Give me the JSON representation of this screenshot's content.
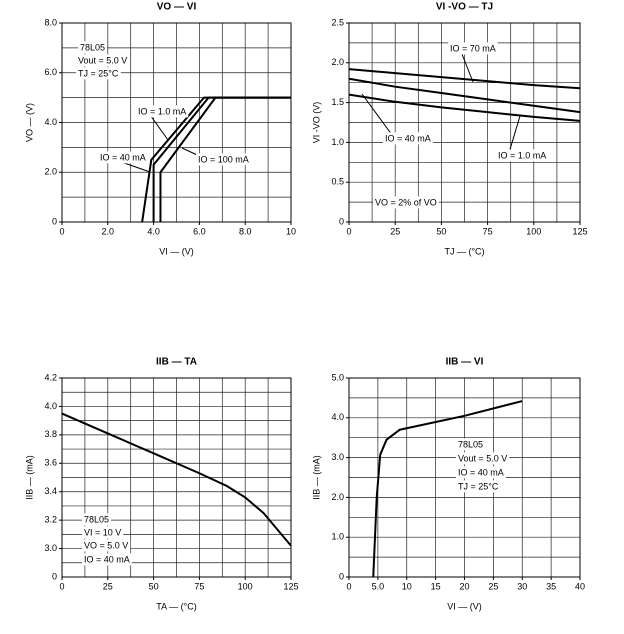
{
  "chart_data": [
    {
      "type": "line",
      "title": "VO — VI",
      "x_label": "VI — (V)",
      "y_label": "VO — (V)",
      "xlim": [
        0,
        10
      ],
      "ylim": [
        0,
        8
      ],
      "xticks": [
        0,
        {
          "value": 2,
          "label": "2.0"
        },
        {
          "value": 4,
          "label": "4.0"
        },
        {
          "value": 6,
          "label": "6.0"
        },
        {
          "value": 8,
          "label": "8.0"
        },
        10
      ],
      "yticks": [
        0,
        {
          "value": 2,
          "label": "2.0"
        },
        {
          "value": 4,
          "label": "4.0"
        },
        {
          "value": 6,
          "label": "6.0"
        },
        {
          "value": 8,
          "label": "8.0"
        }
      ],
      "xgrid": [
        1,
        2,
        3,
        4,
        5,
        6,
        7,
        8,
        9
      ],
      "ygrid": [
        1,
        2,
        3,
        4,
        5,
        6,
        7
      ],
      "grid": true,
      "annotations": [
        "78L05",
        "Vout = 5.0 V",
        "TJ = 25°C"
      ],
      "series": [
        {
          "name": "IO = 1.0 mA",
          "color": "#000000",
          "x": [
            3.5,
            3.9,
            6.2,
            10
          ],
          "values": [
            0,
            2.5,
            5.0,
            5.0
          ]
        },
        {
          "name": "IO = 40 mA",
          "color": "#000000",
          "x": [
            4.0,
            4.0,
            6.4,
            10
          ],
          "values": [
            0,
            2.3,
            5.0,
            5.0
          ]
        },
        {
          "name": "IO = 100 mA",
          "color": "#000000",
          "x": [
            4.3,
            4.3,
            6.7,
            10
          ],
          "values": [
            0,
            2.0,
            5.0,
            5.0
          ]
        }
      ]
    },
    {
      "type": "line",
      "title": "VI -VO — TJ",
      "x_label": "TJ — (°C)",
      "y_label": "VI -VO (V)",
      "xlim": [
        0,
        125
      ],
      "ylim": [
        0,
        2.5
      ],
      "xticks": [
        0,
        25,
        50,
        75,
        100,
        125
      ],
      "yticks": [
        0,
        0.5,
        {
          "value": 1,
          "label": "1.0"
        },
        1.5,
        {
          "value": 2,
          "label": "2.0"
        },
        2.5
      ],
      "xgrid": [
        12.5,
        25,
        37.5,
        50,
        62.5,
        75,
        87.5,
        100,
        112.5
      ],
      "ygrid": [
        0.25,
        0.5,
        0.75,
        1,
        1.25,
        1.5,
        1.75,
        2,
        2.25
      ],
      "grid": true,
      "annotations": [
        "VO = 2% of VO"
      ],
      "x": [
        0,
        25,
        50,
        75,
        100,
        125
      ],
      "series": [
        {
          "name": "IO = 70 mA",
          "color": "#000000",
          "values": [
            1.92,
            1.87,
            1.82,
            1.77,
            1.72,
            1.68
          ]
        },
        {
          "name": "IO = 40 mA",
          "color": "#000000",
          "values": [
            1.8,
            1.7,
            1.62,
            1.54,
            1.46,
            1.38
          ]
        },
        {
          "name": "IO = 1.0 mA",
          "color": "#000000",
          "values": [
            1.6,
            1.51,
            1.44,
            1.38,
            1.32,
            1.27
          ]
        }
      ]
    },
    {
      "type": "line",
      "title": "IIB — TA",
      "x_label": "TA — (°C)",
      "y_label": "IIB — (mA)",
      "xlim": [
        0,
        125
      ],
      "ylim": [
        2.8,
        4.2
      ],
      "y_origin_label": "0",
      "xticks": [
        0,
        25,
        50,
        75,
        100,
        125
      ],
      "yticks": [
        {
          "value": 3,
          "label": "3.0"
        },
        3.2,
        3.4,
        3.6,
        3.8,
        {
          "value": 4,
          "label": "4.0"
        },
        4.2
      ],
      "xgrid": [
        12.5,
        25,
        37.5,
        50,
        62.5,
        75,
        87.5,
        100,
        112.5
      ],
      "ygrid": [
        2.9,
        3,
        3.1,
        3.2,
        3.3,
        3.4,
        3.5,
        3.6,
        3.7,
        3.8,
        3.9,
        4,
        4.1
      ],
      "grid": true,
      "annotations": [
        "78L05",
        "VI = 10 V",
        "VO = 5.0 V",
        "IO = 40 mA"
      ],
      "x": [
        0,
        25,
        50,
        75,
        90,
        100,
        110,
        125
      ],
      "series": [
        {
          "name": "IIB",
          "color": "#000000",
          "values": [
            3.95,
            3.81,
            3.67,
            3.53,
            3.44,
            3.36,
            3.25,
            3.02
          ]
        }
      ]
    },
    {
      "type": "line",
      "title": "IIB — VI",
      "x_label": "VI — (V)",
      "y_label": "IIB — (mA)",
      "xlim": [
        0,
        40
      ],
      "ylim": [
        0,
        5
      ],
      "xticks": [
        0,
        {
          "value": 5,
          "label": "5.0"
        },
        10,
        15,
        20,
        25,
        30,
        35,
        40
      ],
      "yticks": [
        0,
        {
          "value": 1,
          "label": "1.0"
        },
        {
          "value": 2,
          "label": "2.0"
        },
        {
          "value": 3,
          "label": "3.0"
        },
        {
          "value": 4,
          "label": "4.0"
        },
        {
          "value": 5,
          "label": "5.0"
        }
      ],
      "xgrid": [
        5,
        10,
        15,
        20,
        25,
        30,
        35
      ],
      "ygrid": [
        0.5,
        1,
        1.5,
        2,
        2.5,
        3,
        3.5,
        4,
        4.5
      ],
      "grid": true,
      "annotations": [
        "78L05",
        "Vout = 5.0 V",
        "IO = 40 mA",
        "TJ = 25°C"
      ],
      "x": [
        4.2,
        4.8,
        5.4,
        6.5,
        8.8,
        20,
        30
      ],
      "series": [
        {
          "name": "IIB",
          "color": "#000000",
          "values": [
            0,
            2.0,
            3.07,
            3.45,
            3.7,
            4.05,
            4.42
          ]
        }
      ]
    }
  ]
}
